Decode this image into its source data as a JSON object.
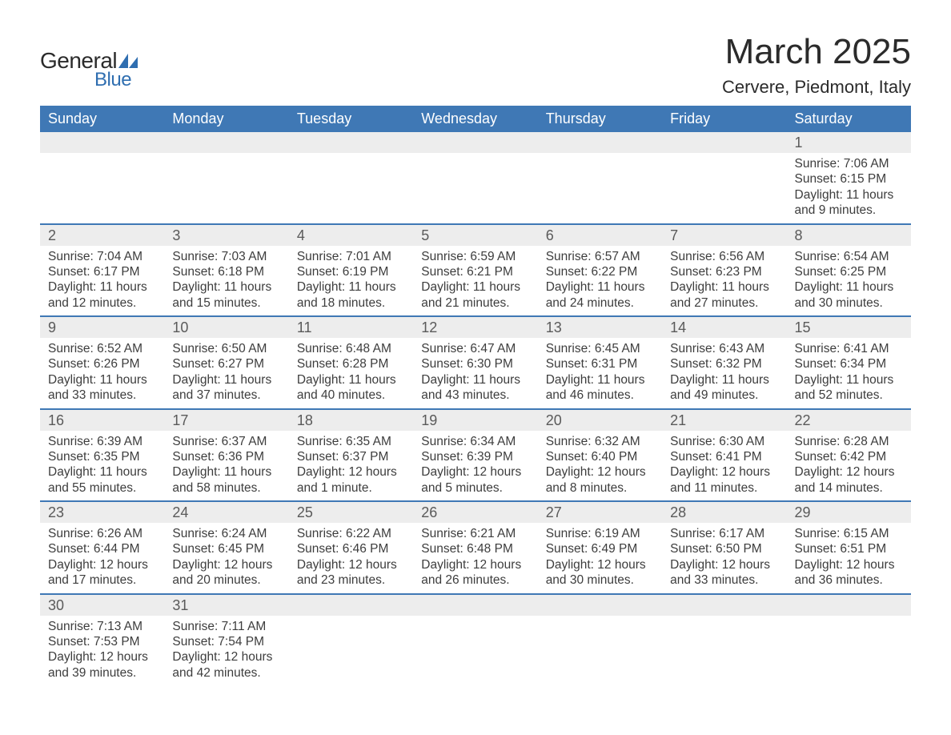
{
  "brand": {
    "general": "General",
    "blue": "Blue"
  },
  "title": "March 2025",
  "location": "Cervere, Piedmont, Italy",
  "colors": {
    "header_bg": "#3f78b5",
    "header_text": "#ffffff",
    "daynum_bg": "#ededed",
    "row_border": "#3f78b5",
    "body_text": "#3d3d3d",
    "logo_blue": "#2f6eb0"
  },
  "weekdays": [
    "Sunday",
    "Monday",
    "Tuesday",
    "Wednesday",
    "Thursday",
    "Friday",
    "Saturday"
  ],
  "weeks": [
    [
      null,
      null,
      null,
      null,
      null,
      null,
      {
        "n": "1",
        "sr": "Sunrise: 7:06 AM",
        "ss": "Sunset: 6:15 PM",
        "d1": "Daylight: 11 hours",
        "d2": "and 9 minutes."
      }
    ],
    [
      {
        "n": "2",
        "sr": "Sunrise: 7:04 AM",
        "ss": "Sunset: 6:17 PM",
        "d1": "Daylight: 11 hours",
        "d2": "and 12 minutes."
      },
      {
        "n": "3",
        "sr": "Sunrise: 7:03 AM",
        "ss": "Sunset: 6:18 PM",
        "d1": "Daylight: 11 hours",
        "d2": "and 15 minutes."
      },
      {
        "n": "4",
        "sr": "Sunrise: 7:01 AM",
        "ss": "Sunset: 6:19 PM",
        "d1": "Daylight: 11 hours",
        "d2": "and 18 minutes."
      },
      {
        "n": "5",
        "sr": "Sunrise: 6:59 AM",
        "ss": "Sunset: 6:21 PM",
        "d1": "Daylight: 11 hours",
        "d2": "and 21 minutes."
      },
      {
        "n": "6",
        "sr": "Sunrise: 6:57 AM",
        "ss": "Sunset: 6:22 PM",
        "d1": "Daylight: 11 hours",
        "d2": "and 24 minutes."
      },
      {
        "n": "7",
        "sr": "Sunrise: 6:56 AM",
        "ss": "Sunset: 6:23 PM",
        "d1": "Daylight: 11 hours",
        "d2": "and 27 minutes."
      },
      {
        "n": "8",
        "sr": "Sunrise: 6:54 AM",
        "ss": "Sunset: 6:25 PM",
        "d1": "Daylight: 11 hours",
        "d2": "and 30 minutes."
      }
    ],
    [
      {
        "n": "9",
        "sr": "Sunrise: 6:52 AM",
        "ss": "Sunset: 6:26 PM",
        "d1": "Daylight: 11 hours",
        "d2": "and 33 minutes."
      },
      {
        "n": "10",
        "sr": "Sunrise: 6:50 AM",
        "ss": "Sunset: 6:27 PM",
        "d1": "Daylight: 11 hours",
        "d2": "and 37 minutes."
      },
      {
        "n": "11",
        "sr": "Sunrise: 6:48 AM",
        "ss": "Sunset: 6:28 PM",
        "d1": "Daylight: 11 hours",
        "d2": "and 40 minutes."
      },
      {
        "n": "12",
        "sr": "Sunrise: 6:47 AM",
        "ss": "Sunset: 6:30 PM",
        "d1": "Daylight: 11 hours",
        "d2": "and 43 minutes."
      },
      {
        "n": "13",
        "sr": "Sunrise: 6:45 AM",
        "ss": "Sunset: 6:31 PM",
        "d1": "Daylight: 11 hours",
        "d2": "and 46 minutes."
      },
      {
        "n": "14",
        "sr": "Sunrise: 6:43 AM",
        "ss": "Sunset: 6:32 PM",
        "d1": "Daylight: 11 hours",
        "d2": "and 49 minutes."
      },
      {
        "n": "15",
        "sr": "Sunrise: 6:41 AM",
        "ss": "Sunset: 6:34 PM",
        "d1": "Daylight: 11 hours",
        "d2": "and 52 minutes."
      }
    ],
    [
      {
        "n": "16",
        "sr": "Sunrise: 6:39 AM",
        "ss": "Sunset: 6:35 PM",
        "d1": "Daylight: 11 hours",
        "d2": "and 55 minutes."
      },
      {
        "n": "17",
        "sr": "Sunrise: 6:37 AM",
        "ss": "Sunset: 6:36 PM",
        "d1": "Daylight: 11 hours",
        "d2": "and 58 minutes."
      },
      {
        "n": "18",
        "sr": "Sunrise: 6:35 AM",
        "ss": "Sunset: 6:37 PM",
        "d1": "Daylight: 12 hours",
        "d2": "and 1 minute."
      },
      {
        "n": "19",
        "sr": "Sunrise: 6:34 AM",
        "ss": "Sunset: 6:39 PM",
        "d1": "Daylight: 12 hours",
        "d2": "and 5 minutes."
      },
      {
        "n": "20",
        "sr": "Sunrise: 6:32 AM",
        "ss": "Sunset: 6:40 PM",
        "d1": "Daylight: 12 hours",
        "d2": "and 8 minutes."
      },
      {
        "n": "21",
        "sr": "Sunrise: 6:30 AM",
        "ss": "Sunset: 6:41 PM",
        "d1": "Daylight: 12 hours",
        "d2": "and 11 minutes."
      },
      {
        "n": "22",
        "sr": "Sunrise: 6:28 AM",
        "ss": "Sunset: 6:42 PM",
        "d1": "Daylight: 12 hours",
        "d2": "and 14 minutes."
      }
    ],
    [
      {
        "n": "23",
        "sr": "Sunrise: 6:26 AM",
        "ss": "Sunset: 6:44 PM",
        "d1": "Daylight: 12 hours",
        "d2": "and 17 minutes."
      },
      {
        "n": "24",
        "sr": "Sunrise: 6:24 AM",
        "ss": "Sunset: 6:45 PM",
        "d1": "Daylight: 12 hours",
        "d2": "and 20 minutes."
      },
      {
        "n": "25",
        "sr": "Sunrise: 6:22 AM",
        "ss": "Sunset: 6:46 PM",
        "d1": "Daylight: 12 hours",
        "d2": "and 23 minutes."
      },
      {
        "n": "26",
        "sr": "Sunrise: 6:21 AM",
        "ss": "Sunset: 6:48 PM",
        "d1": "Daylight: 12 hours",
        "d2": "and 26 minutes."
      },
      {
        "n": "27",
        "sr": "Sunrise: 6:19 AM",
        "ss": "Sunset: 6:49 PM",
        "d1": "Daylight: 12 hours",
        "d2": "and 30 minutes."
      },
      {
        "n": "28",
        "sr": "Sunrise: 6:17 AM",
        "ss": "Sunset: 6:50 PM",
        "d1": "Daylight: 12 hours",
        "d2": "and 33 minutes."
      },
      {
        "n": "29",
        "sr": "Sunrise: 6:15 AM",
        "ss": "Sunset: 6:51 PM",
        "d1": "Daylight: 12 hours",
        "d2": "and 36 minutes."
      }
    ],
    [
      {
        "n": "30",
        "sr": "Sunrise: 7:13 AM",
        "ss": "Sunset: 7:53 PM",
        "d1": "Daylight: 12 hours",
        "d2": "and 39 minutes."
      },
      {
        "n": "31",
        "sr": "Sunrise: 7:11 AM",
        "ss": "Sunset: 7:54 PM",
        "d1": "Daylight: 12 hours",
        "d2": "and 42 minutes."
      },
      null,
      null,
      null,
      null,
      null
    ]
  ]
}
